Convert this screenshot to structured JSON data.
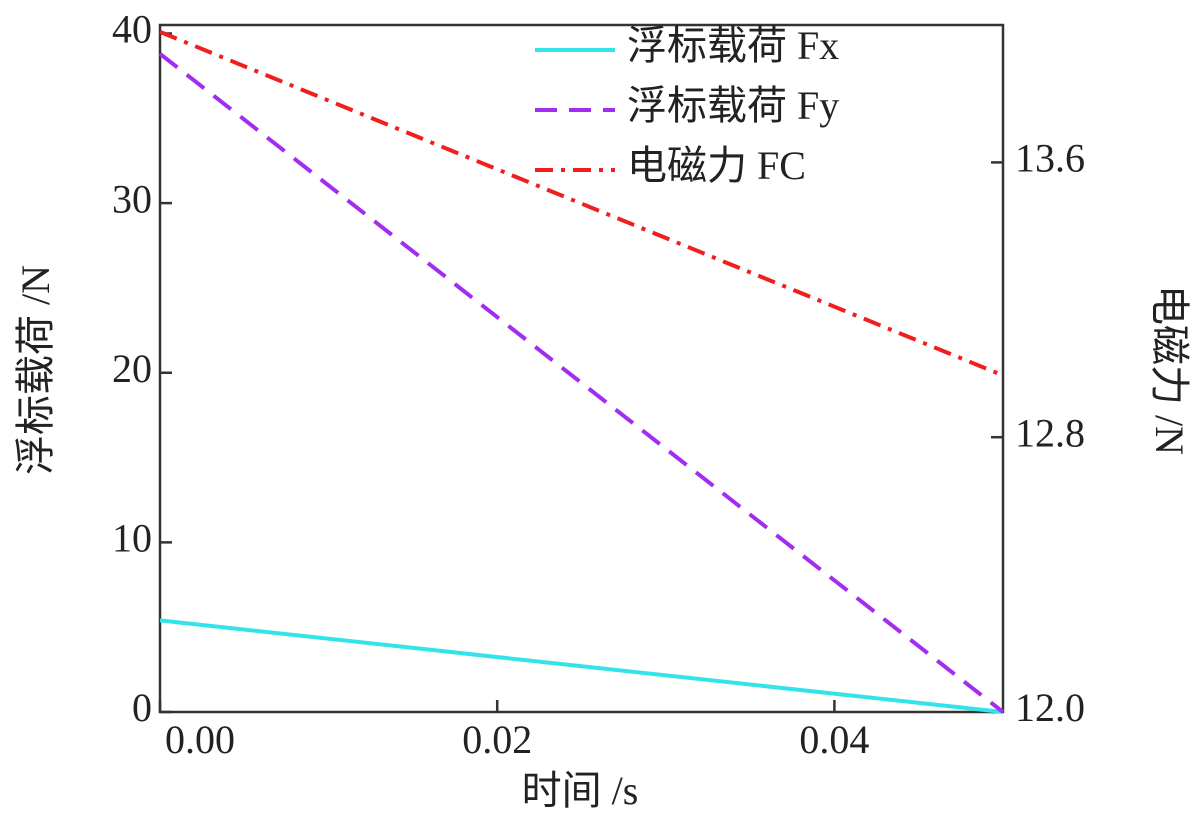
{
  "chart_data": {
    "type": "line",
    "xlabel": "时间 /s",
    "ylabel": "浮标载荷 /N",
    "y2label": "电磁力 /N",
    "x": [
      0,
      0.05
    ],
    "xlim": [
      0,
      0.05
    ],
    "xticks": [
      {
        "value": 0,
        "label": "0.00"
      },
      0.02,
      0.04
    ],
    "ylim": [
      0,
      40.5
    ],
    "yticks": [
      0,
      10,
      20,
      30,
      40
    ],
    "y2lim": [
      12,
      14
    ],
    "y2ticks": [
      {
        "value": 12,
        "label": "12.0"
      },
      12.8,
      13.6
    ],
    "legend": "top-right",
    "series": [
      {
        "name": "浮标载荷 Fx",
        "color": "#33e3ea",
        "linestyle": "solid",
        "values": [
          5.4,
          0
        ]
      },
      {
        "name": "浮标载荷 Fy",
        "color": "#a22cf0",
        "linestyle": "dashed",
        "values": [
          38.8,
          0
        ]
      },
      {
        "name": "电磁力 FC",
        "color": "#f01e1e",
        "linestyle": "dashdot",
        "axis": "y2",
        "values": [
          13.98,
          12.98
        ]
      }
    ]
  }
}
